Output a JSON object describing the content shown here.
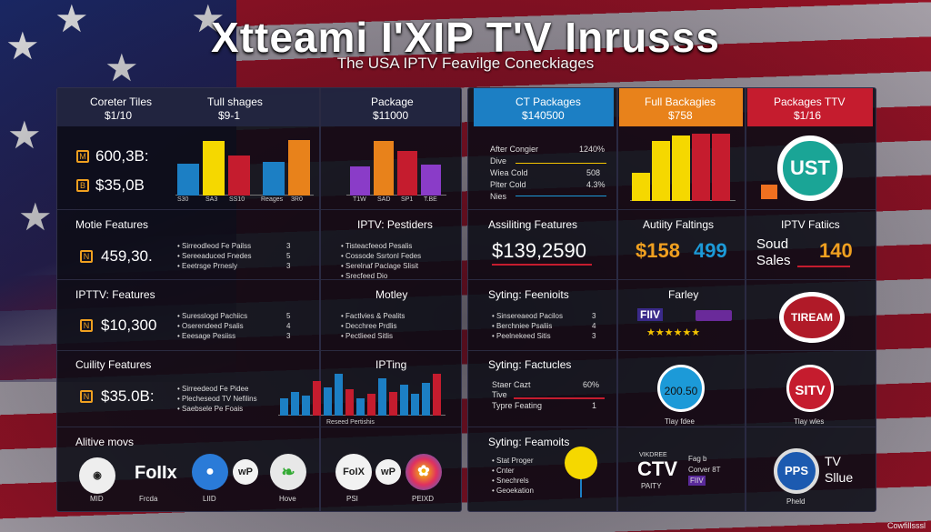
{
  "header": {
    "title": "Xtteami I'XIP T'V Inrusss",
    "subtitle": "The USA IPTV Feavilge Coneckiages"
  },
  "colors": {
    "blue": "#1c7fc4",
    "orange": "#e8821b",
    "red": "#c51c2e",
    "yellow": "#f5d800",
    "purple": "#8a3cc8"
  },
  "col1": {
    "head_a_title": "Coreter Tiles",
    "head_a_price": "$1/10",
    "head_b_title": "Tull shages",
    "head_b_price": "$9-1",
    "stat1": "600,3B:",
    "stat2": "$35,0B",
    "chart_ticks": [
      "S30",
      "SA3",
      "SS10",
      "Reages",
      "3R0"
    ],
    "sec1_title": "Motie Features",
    "sec1_value": "459,30.",
    "sec1_list": [
      "Sirreodleod Fe Pailss",
      "Sereeaduced Fnedes",
      "Eeetrsge Prnesly"
    ],
    "sec1_nums": [
      "3",
      "5",
      "3"
    ],
    "sec2_title": "IPTTV: Features",
    "sec2_value": "$10,300",
    "sec2_list": [
      "Suresslogd Pachiics",
      "Oserendeed Psalis",
      "Eeesage Pesiiss"
    ],
    "sec2_nums": [
      "5",
      "4",
      "3"
    ],
    "sec3_title": "Cuility Features",
    "sec3_value": "$35.0B:",
    "sec3_list": [
      "Sirreedeod Fe Pidee",
      "Plecheseod TV Nefilins",
      "Saebsele Pe Foais"
    ],
    "bottom_title": "Alitive movs",
    "bottom_caps": [
      "MID",
      "Frcda",
      "LIID",
      "Hove"
    ],
    "bottom_logos": [
      "",
      "FoIIx",
      "",
      "wP",
      ""
    ]
  },
  "col2": {
    "head_title": "Package",
    "head_price": "$11000",
    "chart_ticks": [
      "T1W",
      "SAD",
      "SP1",
      "T.BE"
    ],
    "sec1_title": "IPTV: Pestiders",
    "sec1_list": [
      "Tisteacfeeod Pesalis",
      "Cossode Ssrtonl Fedes",
      "Serelnaf Paclage Slisit",
      "Srecfeed Dio"
    ],
    "sec2_title": "Motley",
    "sec2_list": [
      "Factlvies & Pealits",
      "Decchree Prdlis",
      "Pectlieed Sitlis"
    ],
    "sec3_title": "IPTing",
    "chart2_caption": "Reseed Pertishis",
    "logos": [
      "FoIX",
      "wP",
      ""
    ],
    "logo_caps": [
      "PSI",
      "PEIXD"
    ]
  },
  "col3": {
    "head_title": "CT Packages",
    "head_price": "$140500",
    "rows": [
      {
        "label": "After Congier",
        "value": "1240%"
      },
      {
        "label": "Dive",
        "value": ""
      },
      {
        "label": "Wiea Cold",
        "value": "508"
      },
      {
        "label": "Plter Cold",
        "value": "4.3%"
      },
      {
        "label": "Nies",
        "value": ""
      }
    ],
    "sec1_title": "Assiliting Features",
    "sec1_value": "$139,2590",
    "sec2_title": "Syting: Feenioits",
    "sec2_list": [
      "Sinsereaeod Pacilos",
      "Berchniee Psaliis",
      "Peelnekeed Sitis"
    ],
    "sec2_nums": [
      "3",
      "4",
      "3"
    ],
    "sec3_title": "Syting: Factucles",
    "sec3_rows": [
      {
        "label": "Staer Cazt",
        "value": "60%"
      },
      {
        "label": "Tive",
        "value": ""
      },
      {
        "label": "Typre Feating",
        "value": "1"
      }
    ],
    "sec4_title": "Syting: Feamoits",
    "sec4_list": [
      "Stat Proger",
      "Cnter",
      "Snechrels",
      "Geoekation"
    ]
  },
  "col4": {
    "head_title": "Full Backagies",
    "head_price": "$758",
    "sec1_title": "Autiity Faltings",
    "sec1_value_a": "$158",
    "sec1_value_b": "499",
    "sec2_title": "Farley",
    "badge": "FIIV",
    "circle_value": "200.50",
    "circle_cap": "Tlay fdee",
    "bottom_logo": "CTV",
    "bottom_top": "VIKDREE",
    "bottom_sub": "PAITY",
    "bottom_side": [
      "Fag b",
      "Corver 8T",
      "FIIV"
    ]
  },
  "col5": {
    "head_title": "Packages TTV",
    "head_price": "$1/16",
    "logo1": "UST",
    "sec1_title": "IPTV Fatiics",
    "sec1_lines": [
      "Soud",
      "Sales"
    ],
    "sec1_value": "140",
    "logo2": "TIREAM",
    "logo3": "SITV",
    "logo3_cap": "Tlay wles",
    "logo4": "PPS",
    "logo4_side": [
      "TV",
      "Sllue"
    ],
    "logo4_cap": "Pheld"
  },
  "credit": "Cowfillsssl"
}
